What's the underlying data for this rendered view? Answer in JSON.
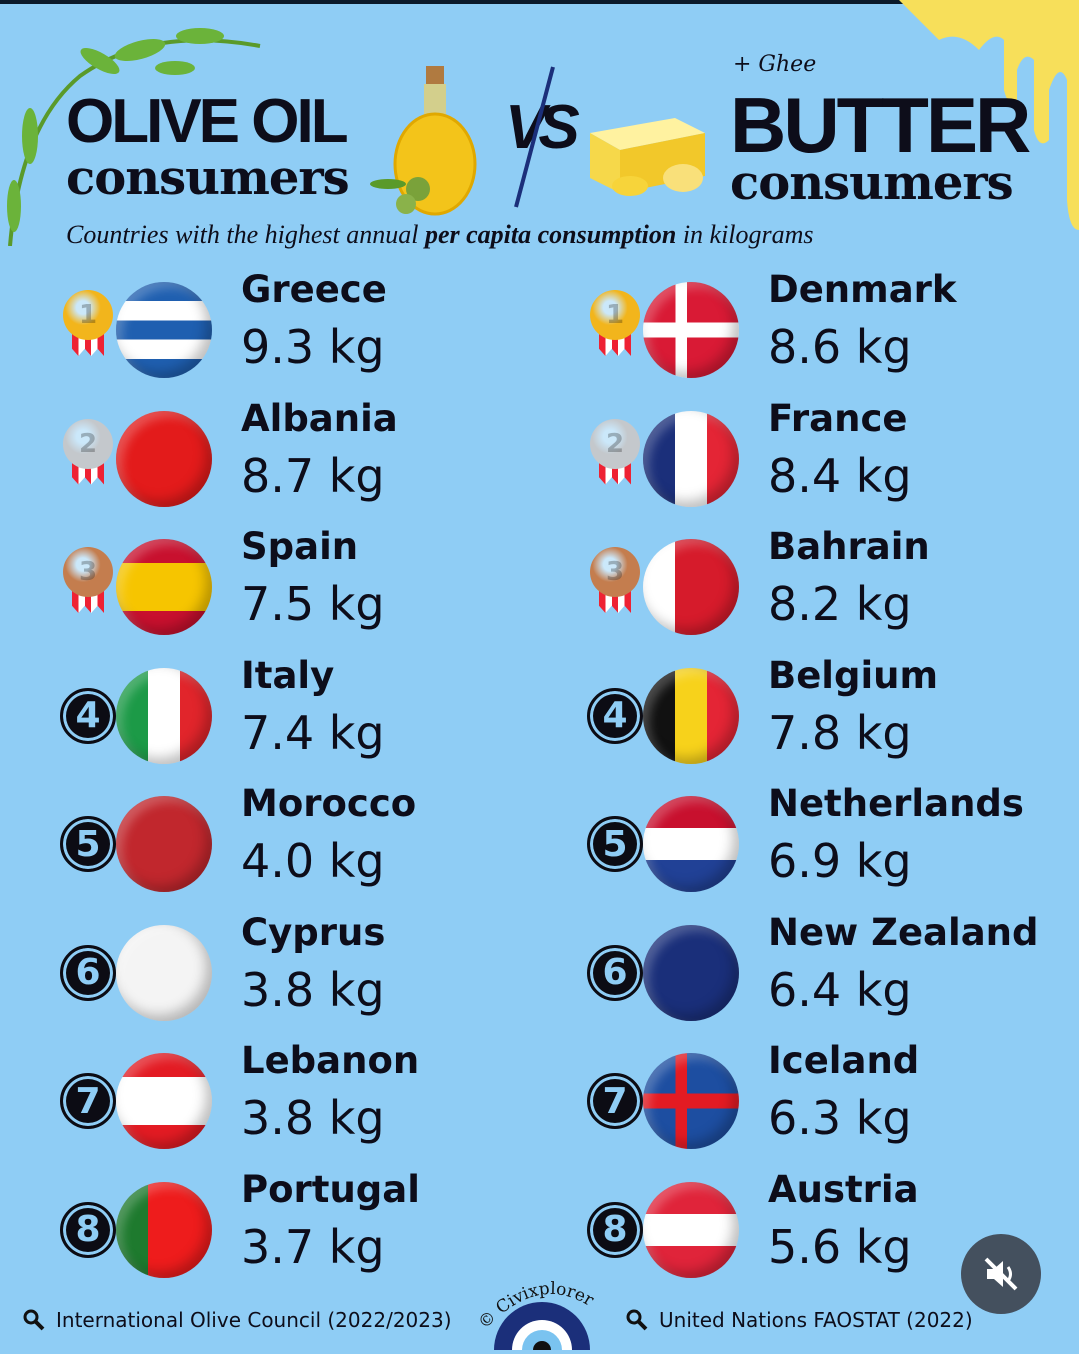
{
  "header": {
    "left_title": "OLIVE OIL",
    "left_sub": "consumers",
    "vs": "VS",
    "right_note": "+ Ghee",
    "right_title": "BUTTER",
    "right_sub": "consumers",
    "subtitle_a": "Countries with the highest annual ",
    "subtitle_b": "per capita consumption",
    "subtitle_c": " in kilograms"
  },
  "olive": [
    {
      "rank": "1",
      "name": "Greece",
      "value": "9.3 kg",
      "flag": {
        "type": "h",
        "colors": [
          "#1f5fb0",
          "#fff",
          "#1f5fb0",
          "#fff",
          "#1f5fb0"
        ]
      }
    },
    {
      "rank": "2",
      "name": "Albania",
      "value": "8.7 kg",
      "flag": {
        "type": "solid",
        "colors": [
          "#e31b1b"
        ]
      }
    },
    {
      "rank": "3",
      "name": "Spain",
      "value": "7.5 kg",
      "flag": {
        "type": "h",
        "colors": [
          "#c8102e",
          "#f6c500",
          "#f6c500",
          "#c8102e"
        ]
      }
    },
    {
      "rank": "4",
      "name": "Italy",
      "value": "7.4 kg",
      "flag": {
        "type": "v",
        "colors": [
          "#1c9a47",
          "#fff",
          "#e1252b"
        ]
      }
    },
    {
      "rank": "5",
      "name": "Morocco",
      "value": "4.0 kg",
      "flag": {
        "type": "solid",
        "colors": [
          "#c1272d"
        ]
      }
    },
    {
      "rank": "6",
      "name": "Cyprus",
      "value": "3.8 kg",
      "flag": {
        "type": "solid",
        "colors": [
          "#f4f4f4"
        ]
      }
    },
    {
      "rank": "7",
      "name": "Lebanon",
      "value": "3.8 kg",
      "flag": {
        "type": "h",
        "colors": [
          "#e31b23",
          "#fff",
          "#fff",
          "#e31b23"
        ]
      }
    },
    {
      "rank": "8",
      "name": "Portugal",
      "value": "3.7 kg",
      "flag": {
        "type": "v",
        "colors": [
          "#1e7a2e",
          "#ee1c1c",
          "#ee1c1c"
        ]
      }
    }
  ],
  "butter": [
    {
      "rank": "1",
      "name": "Denmark",
      "value": "8.6 kg",
      "flag": {
        "type": "cross",
        "colors": [
          "#d91a35",
          "#fff"
        ]
      }
    },
    {
      "rank": "2",
      "name": "France",
      "value": "8.4 kg",
      "flag": {
        "type": "v",
        "colors": [
          "#1b2f7a",
          "#fff",
          "#e42535"
        ]
      }
    },
    {
      "rank": "3",
      "name": "Bahrain",
      "value": "8.2 kg",
      "flag": {
        "type": "v",
        "colors": [
          "#fff",
          "#d61b2b",
          "#d61b2b"
        ]
      }
    },
    {
      "rank": "4",
      "name": "Belgium",
      "value": "7.8 kg",
      "flag": {
        "type": "v",
        "colors": [
          "#111",
          "#f7d21b",
          "#e42535"
        ]
      }
    },
    {
      "rank": "5",
      "name": "Netherlands",
      "value": "6.9 kg",
      "flag": {
        "type": "h",
        "colors": [
          "#c8102e",
          "#fff",
          "#214196"
        ]
      }
    },
    {
      "rank": "6",
      "name": "New Zealand",
      "value": "6.4 kg",
      "flag": {
        "type": "solid",
        "colors": [
          "#1a2f7a"
        ]
      }
    },
    {
      "rank": "7",
      "name": "Iceland",
      "value": "6.3 kg",
      "flag": {
        "type": "cross",
        "colors": [
          "#1d4ea1",
          "#e31b23"
        ]
      }
    },
    {
      "rank": "8",
      "name": "Austria",
      "value": "5.6 kg",
      "flag": {
        "type": "h",
        "colors": [
          "#e0243a",
          "#fff",
          "#e0243a"
        ]
      }
    }
  ],
  "footer": {
    "left_source": "International Olive Council (2022/2023)",
    "right_source": "United Nations FAOSTAT (2022)",
    "credit": "© Civixplorer",
    "mute_icon": "speaker-muted-icon",
    "source_icon": "magnifier-icon"
  },
  "medal_colors": {
    "1": "#f2b51c",
    "2": "#c4c8cc",
    "3": "#c47d4e"
  }
}
